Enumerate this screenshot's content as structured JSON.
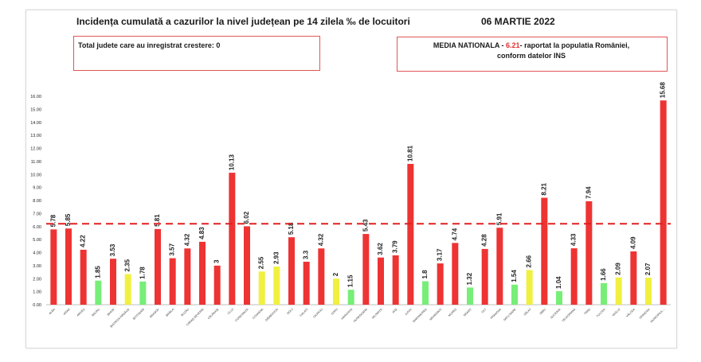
{
  "title": "Incidența cumulată a cazurilor la nivel județean pe 14 zilela ‰ de locuitori",
  "date": "06 MARTIE 2022",
  "box_left": "Total judete care au inregistrat crestere: 0",
  "box_right": {
    "prefix": "MEDIA NATIONALA - ",
    "value": "6.21",
    "suffix": "-  raportat la populatia României,",
    "line2": "conform datelor INS"
  },
  "colors": {
    "red": "#ee3333",
    "green": "#77ee77",
    "yellow": "#f0f040",
    "dash": "#e02020"
  },
  "chart_data": {
    "type": "bar",
    "ylim": [
      0,
      16
    ],
    "yticks": [
      "0.00",
      "1.00",
      "2.00",
      "3.00",
      "4.00",
      "5.00",
      "6.00",
      "7.00",
      "8.00",
      "9.00",
      "10.00",
      "11.00",
      "12.00",
      "13.00",
      "14.00",
      "15.00",
      "16.00"
    ],
    "reference_line": 6.21,
    "categories": [
      "ALBA",
      "ARAD",
      "ARGEȘ",
      "BACĂU",
      "BIHOR",
      "BISTRIȚA-NĂSĂUD",
      "BOTOȘANI",
      "BRAȘOV",
      "BRĂILA",
      "BUZĂU",
      "CARAȘ-SEVERIN",
      "CĂLĂRAȘI",
      "CLUJ",
      "CONSTANȚA",
      "COVASNA",
      "DÂMBOVIȚA",
      "DOLJ",
      "GALAȚI",
      "GIURGIU",
      "GORJ",
      "HARGHITA",
      "HUNEDOARA",
      "IALOMIȚA",
      "IAȘI",
      "ILFOV",
      "MARAMUREȘ",
      "MEHEDINȚI",
      "MUREȘ",
      "NEAMȚ",
      "OLT",
      "PRAHOVA",
      "SATU MARE",
      "SĂLAJ",
      "SIBIU",
      "SUCEAVA",
      "TELEORMAN",
      "TIMIȘ",
      "TULCEA",
      "VASLUI",
      "VÂLCEA",
      "VRANCEA",
      "MUNICIPIUL..."
    ],
    "values": [
      5.78,
      5.85,
      4.22,
      1.85,
      3.53,
      2.35,
      1.78,
      5.81,
      3.57,
      4.32,
      4.83,
      3,
      10.13,
      6.02,
      2.55,
      2.93,
      5.18,
      3.3,
      4.32,
      2,
      1.15,
      5.43,
      3.62,
      3.79,
      10.81,
      1.8,
      3.17,
      4.74,
      1.32,
      4.28,
      5.91,
      1.54,
      2.66,
      8.21,
      1.04,
      4.33,
      7.94,
      1.66,
      2.09,
      4.09,
      2.07,
      15.68
    ],
    "value_labels": [
      "5.78",
      "5.85",
      "4.22",
      "1.85",
      "3.53",
      "2.35",
      "1.78",
      "5.81",
      "3.57",
      "4.32",
      "4.83",
      "3",
      "10.13",
      "6.02",
      "2.55",
      "2.93",
      "5.18",
      "3.3",
      "4.32",
      "2",
      "1.15",
      "5.43",
      "3.62",
      "3.79",
      "10.81",
      "1.8",
      "3.17",
      "4.74",
      "1.32",
      "4.28",
      "5.91",
      "1.54",
      "2.66",
      "8.21",
      "1.04",
      "4.33",
      "7.94",
      "1.66",
      "2.09",
      "4.09",
      "2.07",
      "15.68"
    ],
    "bar_colors": [
      "red",
      "red",
      "red",
      "green",
      "red",
      "yellow",
      "green",
      "red",
      "red",
      "red",
      "red",
      "red",
      "red",
      "red",
      "yellow",
      "yellow",
      "red",
      "red",
      "red",
      "yellow",
      "green",
      "red",
      "red",
      "red",
      "red",
      "green",
      "red",
      "red",
      "green",
      "red",
      "red",
      "green",
      "yellow",
      "red",
      "green",
      "red",
      "red",
      "green",
      "yellow",
      "red",
      "yellow",
      "red"
    ]
  }
}
